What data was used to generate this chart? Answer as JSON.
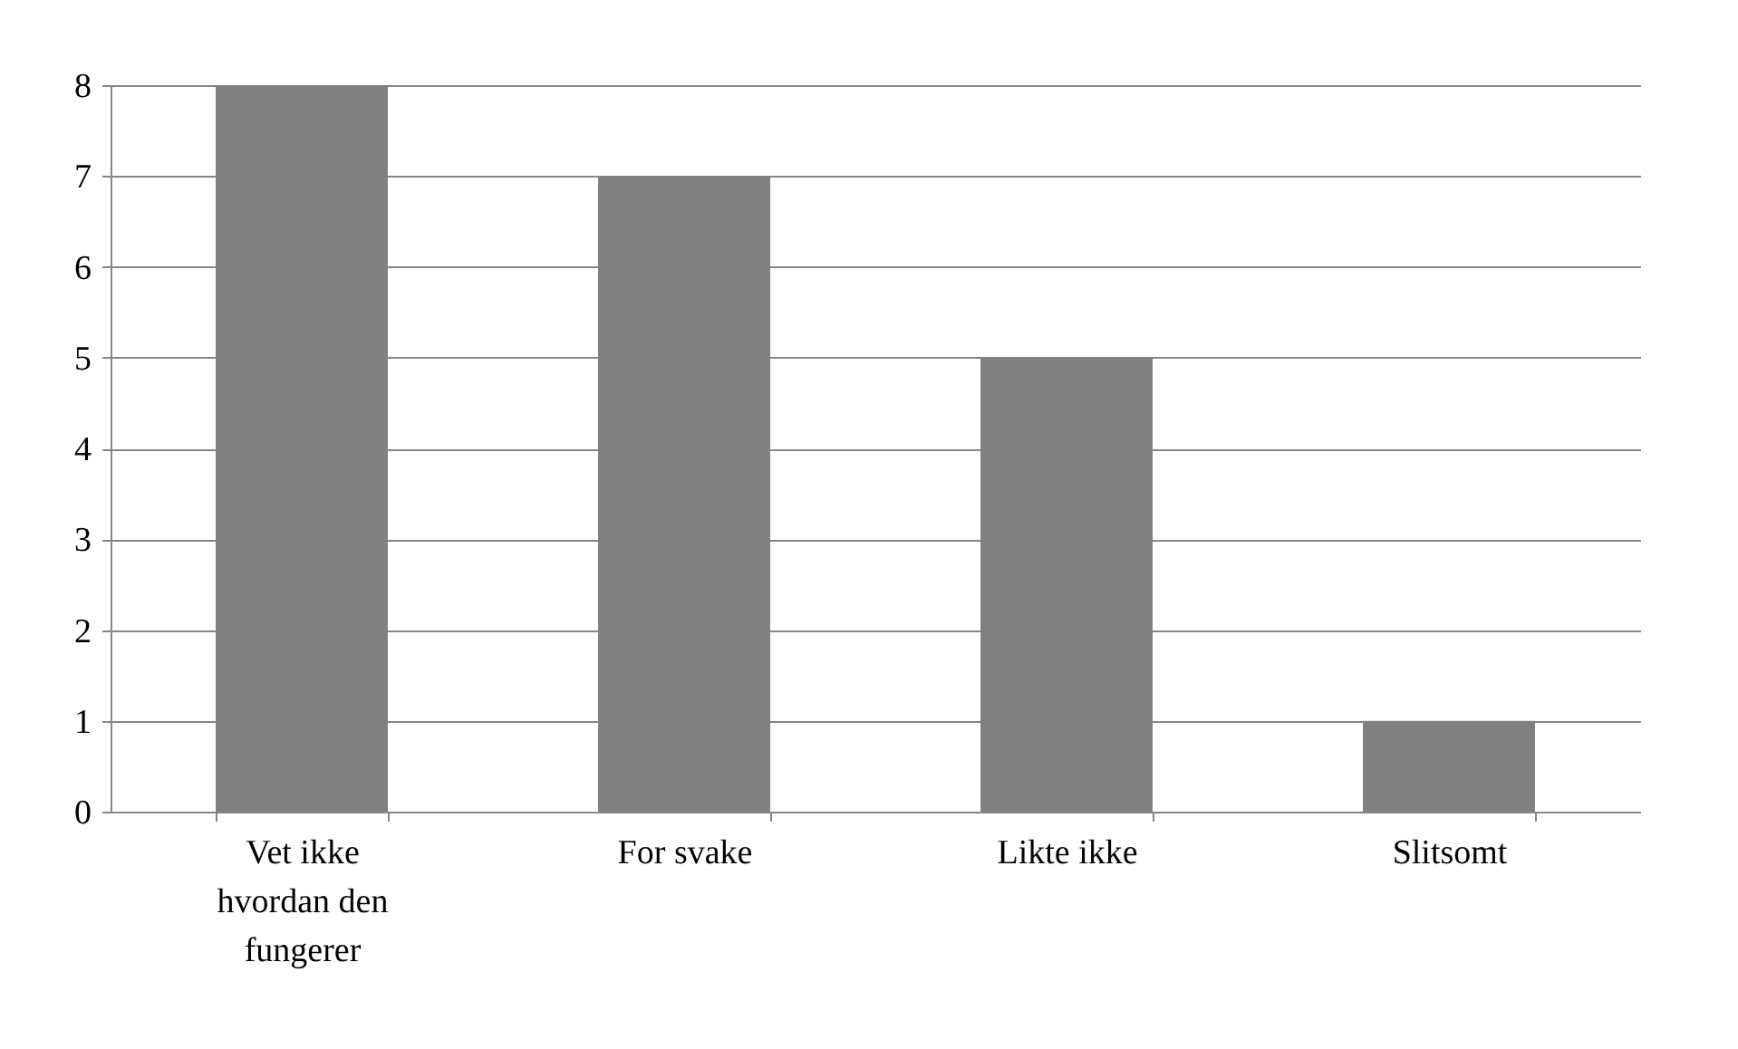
{
  "chart_data": {
    "type": "bar",
    "categories": [
      "Vet ikke hvordan den fungerer",
      "For svake",
      "Likte ikke",
      "Slitsomt"
    ],
    "values": [
      8,
      7,
      5,
      1
    ],
    "color": "#808080",
    "ylim": [
      0,
      8
    ],
    "yticks": [
      0,
      1,
      2,
      3,
      4,
      5,
      6,
      7,
      8
    ],
    "grid": "y"
  }
}
